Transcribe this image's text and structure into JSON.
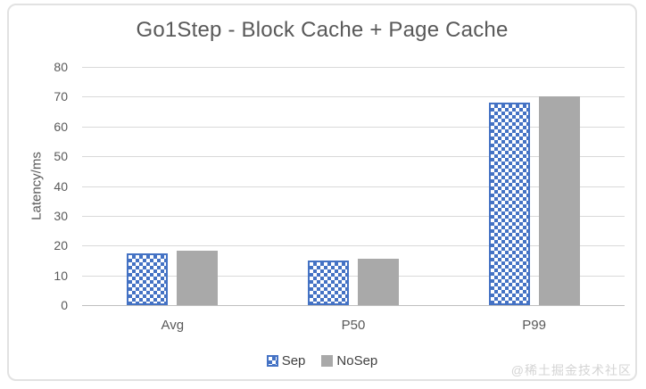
{
  "title": "Go1Step - Block Cache + Page Cache",
  "watermark": "@稀土掘金技术社区",
  "colors": {
    "sep_blue": "#4472c4",
    "nosep_gray": "#a9a9a9",
    "gridline": "#d9d9d9",
    "axis_text": "#595959",
    "legend_text": "#404040",
    "frame_border": "#e2e2e2",
    "watermark_gray": "#d4d4d4"
  },
  "chart_data": {
    "type": "bar",
    "title": "Go1Step - Block Cache + Page Cache",
    "categories": [
      "Avg",
      "P50",
      "P99"
    ],
    "series": [
      {
        "name": "Sep",
        "values": [
          17.5,
          15,
          68
        ],
        "color": "#4472c4",
        "pattern": "checkerboard"
      },
      {
        "name": "NoSep",
        "values": [
          18.2,
          15.5,
          70
        ],
        "color": "#a9a9a9",
        "pattern": "solid"
      }
    ],
    "xlabel": "",
    "ylabel": "Latency/ms",
    "ylim": [
      0,
      80
    ],
    "yticks": [
      0,
      10,
      20,
      30,
      40,
      50,
      60,
      70,
      80
    ],
    "grid": true,
    "legend_position": "bottom"
  }
}
